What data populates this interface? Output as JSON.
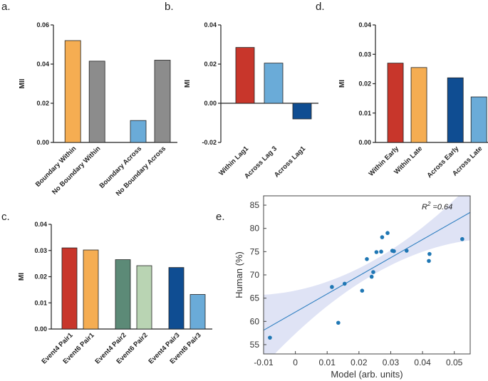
{
  "panels": {
    "a": "a.",
    "b": "b.",
    "c": "c.",
    "d": "d.",
    "e": "e."
  },
  "colors": {
    "red": "#c8362b",
    "orange": "#f5ad52",
    "gray": "#8c8c8c",
    "lightblue": "#6aabd8",
    "darkblue": "#0f4d92",
    "green": "#5c8a77",
    "lightgreen": "#b9d4b3",
    "point": "#1f77b4",
    "band": "#dfe3f5",
    "fitline": "#2f7fc1"
  },
  "chart_data": [
    {
      "id": "a",
      "type": "bar",
      "ylabel": "MII",
      "ylim": [
        0,
        0.06
      ],
      "yticks": [
        "0.00",
        "0.02",
        "0.04",
        "0.06"
      ],
      "categories": [
        "Boundary Within",
        "No Boundary Within",
        "Boundary Across",
        "No Boundary Across"
      ],
      "values": [
        0.052,
        0.0415,
        0.0112,
        0.042
      ],
      "colors": [
        "orange",
        "gray",
        "lightblue",
        "gray"
      ]
    },
    {
      "id": "b",
      "type": "bar",
      "ylabel": "MI",
      "ylim": [
        -0.02,
        0.04
      ],
      "yticks": [
        "-0.02",
        "0.00",
        "0.02",
        "0.04"
      ],
      "categories": [
        "Within Lag1",
        "Across Lag 3",
        "Across Lag1"
      ],
      "values": [
        0.0285,
        0.0205,
        -0.008
      ],
      "colors": [
        "red",
        "lightblue",
        "darkblue"
      ]
    },
    {
      "id": "d",
      "type": "bar",
      "ylabel": "MI",
      "ylim": [
        0,
        0.04
      ],
      "yticks": [
        "0.00",
        "0.01",
        "0.02",
        "0.03",
        "0.04"
      ],
      "categories": [
        "Within Early",
        "Within Late",
        "Across Early",
        "Across Late"
      ],
      "values": [
        0.027,
        0.0255,
        0.022,
        0.0155
      ],
      "colors": [
        "red",
        "orange",
        "darkblue",
        "lightblue"
      ]
    },
    {
      "id": "c",
      "type": "bar",
      "ylabel": "MI",
      "ylim": [
        0,
        0.04
      ],
      "yticks": [
        "0.00",
        "0.01",
        "0.02",
        "0.03",
        "0.04"
      ],
      "categories": [
        "Event4 Pair1",
        "Event6 Pair1",
        "Event4 Pair2",
        "Event6 Pair2",
        "Event4 Pair3",
        "Event6 Pair3"
      ],
      "values": [
        0.031,
        0.0302,
        0.0265,
        0.0242,
        0.0235,
        0.0132
      ],
      "colors": [
        "red",
        "orange",
        "green",
        "lightgreen",
        "darkblue",
        "lightblue"
      ]
    },
    {
      "id": "e",
      "type": "scatter",
      "xlabel": "Model (arb. units)",
      "ylabel": "Human (%)",
      "xlim": [
        -0.01,
        0.055
      ],
      "ylim": [
        53,
        87
      ],
      "xticks": [
        "-0.01",
        "0",
        "0.01",
        "0.02",
        "0.03",
        "0.04",
        "0.05"
      ],
      "yticks": [
        "55",
        "60",
        "65",
        "70",
        "75",
        "80",
        "85"
      ],
      "r2_label": "R",
      "r2_sup": "2",
      "r2_value": " =0.64",
      "points": [
        [
          -0.008,
          56.5
        ],
        [
          0.0115,
          67.4
        ],
        [
          0.0135,
          59.7
        ],
        [
          0.0155,
          68.1
        ],
        [
          0.021,
          66.6
        ],
        [
          0.0225,
          73.4
        ],
        [
          0.024,
          69.6
        ],
        [
          0.0245,
          70.6
        ],
        [
          0.0255,
          74.9
        ],
        [
          0.027,
          75.0
        ],
        [
          0.0273,
          78.1
        ],
        [
          0.029,
          79.0
        ],
        [
          0.0305,
          75.2
        ],
        [
          0.031,
          75.1
        ],
        [
          0.035,
          75.2
        ],
        [
          0.042,
          73.0
        ],
        [
          0.0422,
          74.5
        ],
        [
          0.0525,
          77.7
        ]
      ],
      "fit": {
        "slope": 390,
        "intercept": 62.0
      }
    }
  ]
}
